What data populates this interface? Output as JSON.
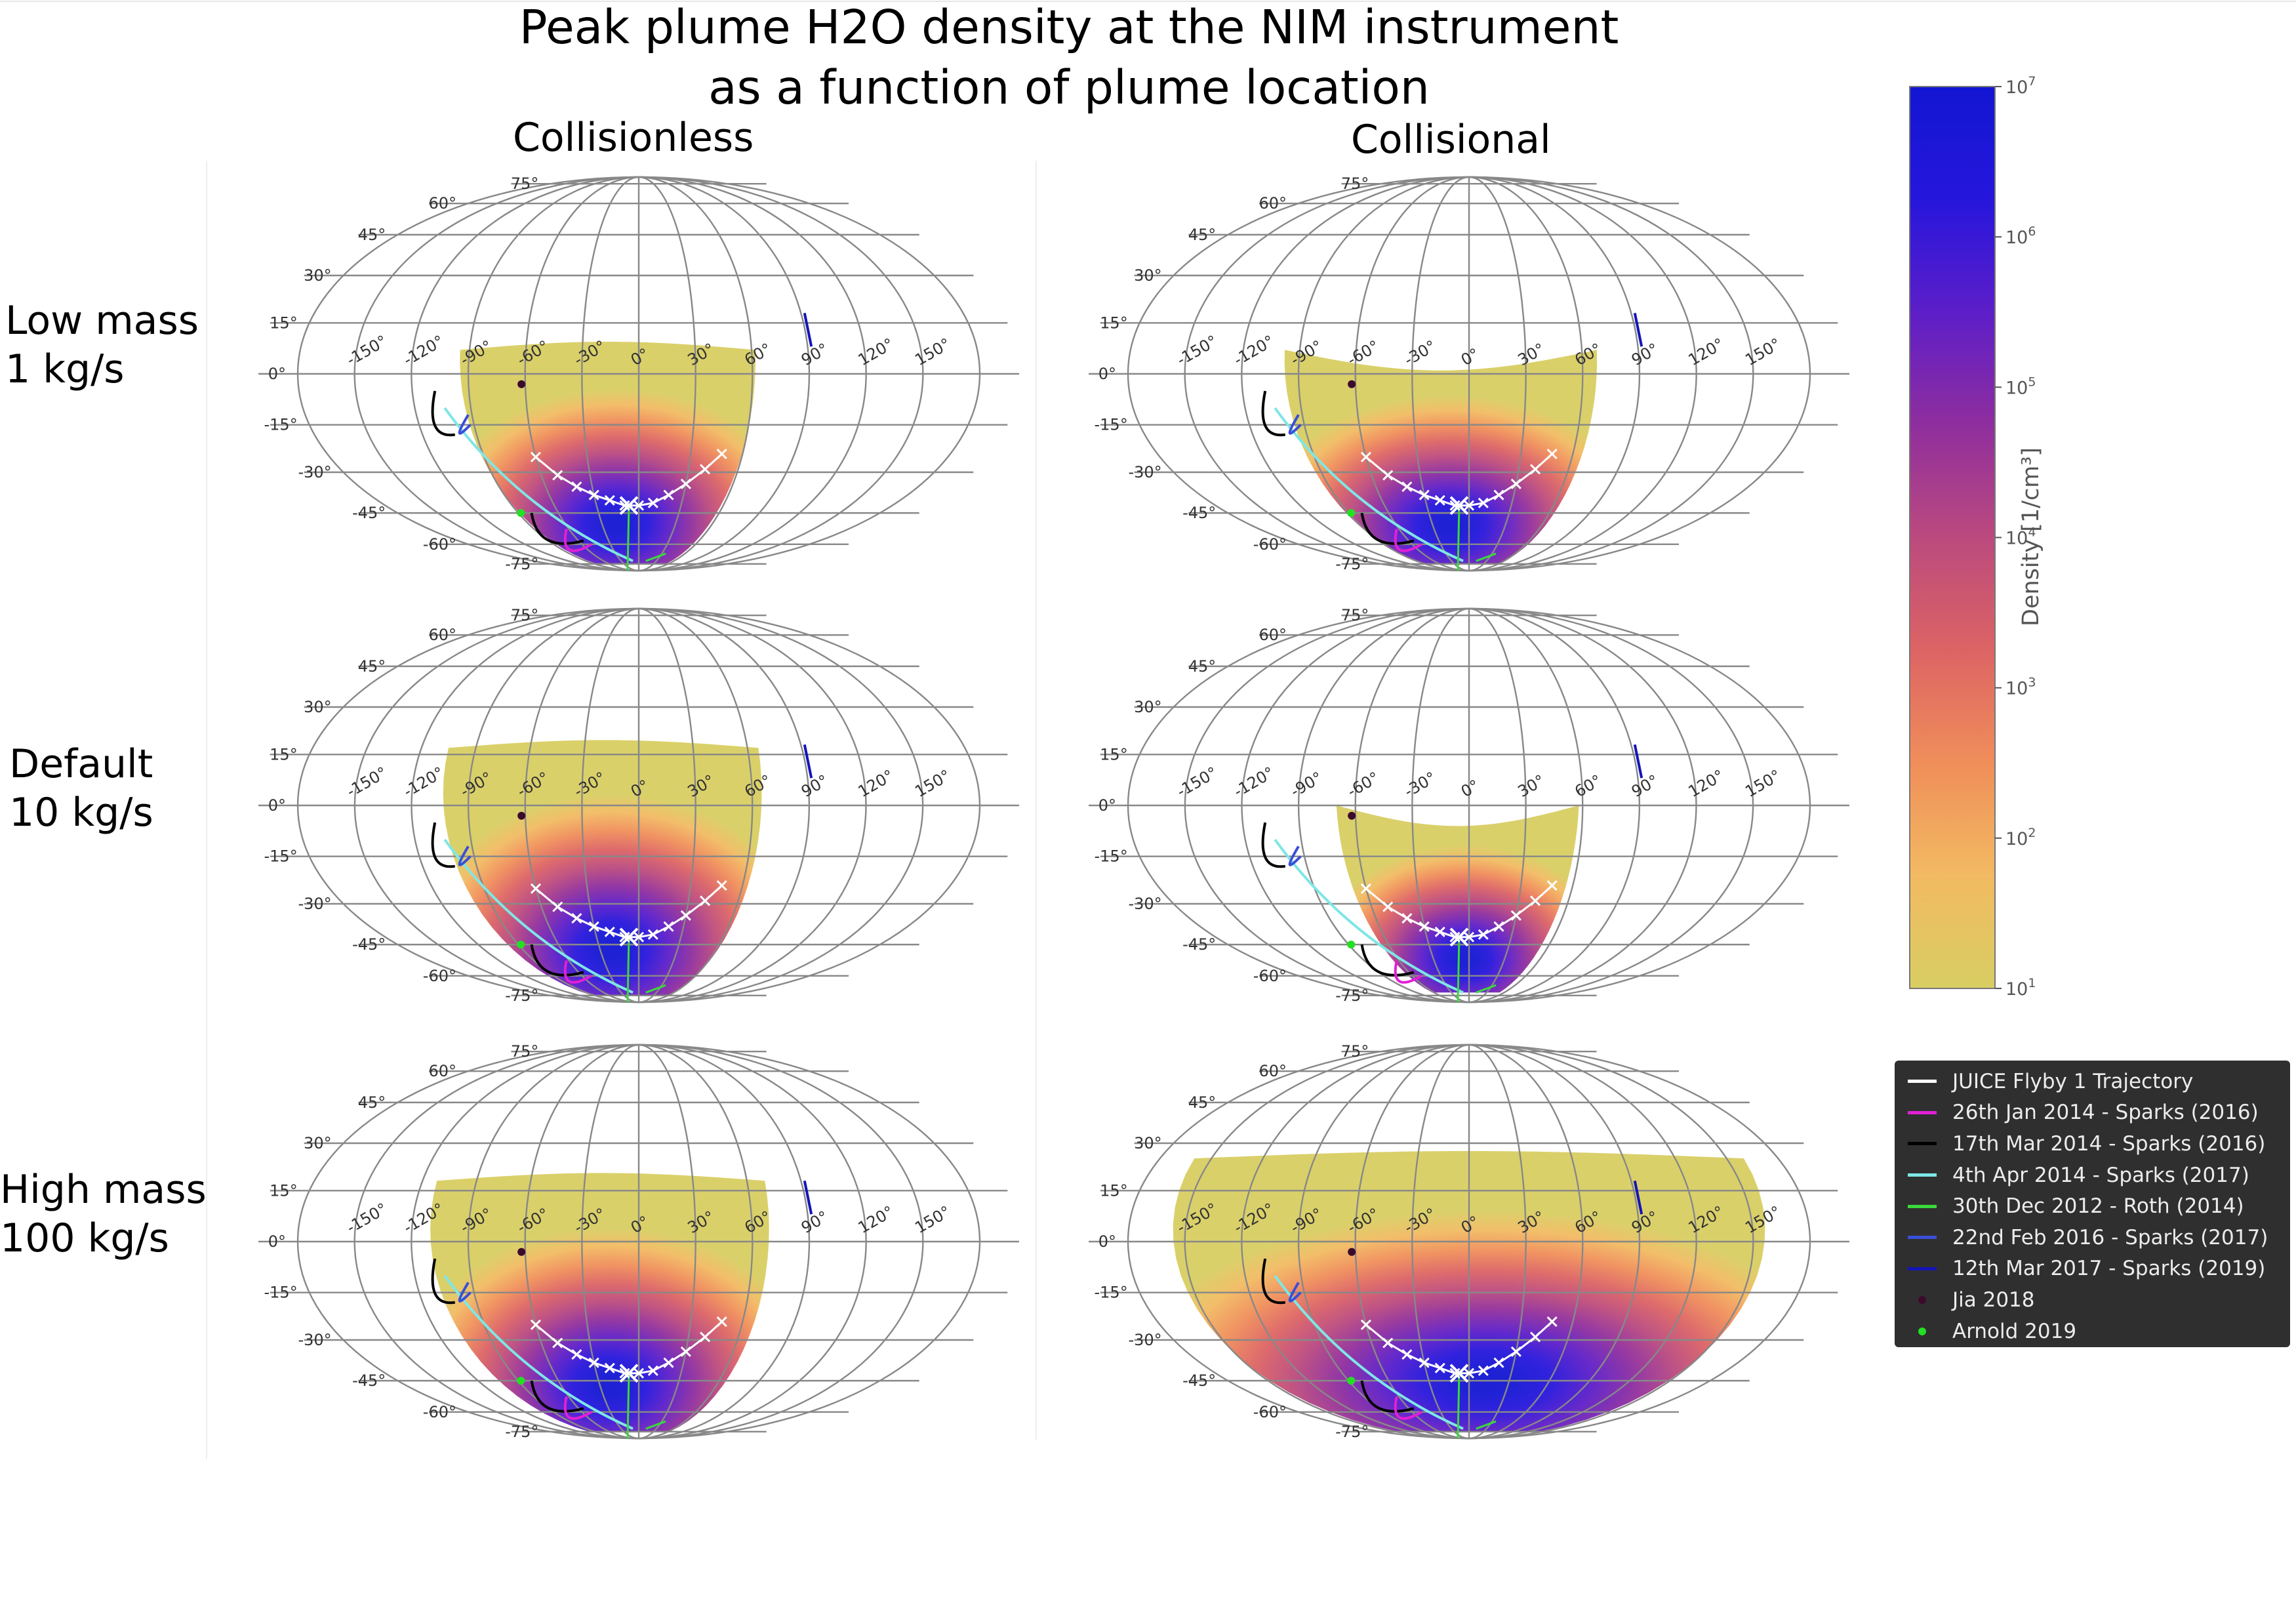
{
  "figure": {
    "title_line1": "Peak plume H2O density at the NIM instrument",
    "title_line2": "as a function of plume location"
  },
  "columns": [
    "Collisionless",
    "Collisional"
  ],
  "rows": [
    {
      "label": "Low mass\n1 kg/s"
    },
    {
      "label": "Default\n10 kg/s"
    },
    {
      "label": "High mass\n100 kg/s"
    }
  ],
  "colors": {
    "trajectory": "#ffffff",
    "grid": "#888888",
    "colormap": [
      "#d8ce62",
      "#f2ba62",
      "#f08e5a",
      "#dc6464",
      "#bb4a7e",
      "#8f2e9e",
      "#5d1ec8",
      "#2616dc",
      "#1216d2"
    ]
  },
  "chart_data": {
    "type": "map",
    "projection": "aitoff",
    "longitude_ticks": [
      "-150°",
      "-120°",
      "-90°",
      "-60°",
      "-30°",
      "0°",
      "30°",
      "60°",
      "90°",
      "120°",
      "150°"
    ],
    "latitude_ticks": [
      "75°",
      "60°",
      "45°",
      "30°",
      "15°",
      "0°",
      "-15°",
      "-30°",
      "-45°",
      "-60°",
      "-75°"
    ],
    "colorbar": {
      "label": "Density",
      "unit": "1/cm³",
      "scale": "log",
      "range": [
        10,
        10000000
      ],
      "tick_labels": [
        {
          "base": "10",
          "exp": "1"
        },
        {
          "base": "10",
          "exp": "2"
        },
        {
          "base": "10",
          "exp": "3"
        },
        {
          "base": "10",
          "exp": "4"
        },
        {
          "base": "10",
          "exp": "5"
        },
        {
          "base": "10",
          "exp": "6"
        },
        {
          "base": "10",
          "exp": "7"
        }
      ]
    },
    "legend": [
      {
        "label": "JUICE Flyby 1 Trajectory",
        "kind": "line",
        "color": "#ffffff"
      },
      {
        "label": "26th Jan 2014 - Sparks (2016)",
        "kind": "line",
        "color": "#e21fd6"
      },
      {
        "label": "17th Mar 2014 - Sparks (2016)",
        "kind": "line",
        "color": "#000000"
      },
      {
        "label": "4th Apr 2014 - Sparks (2017)",
        "kind": "line",
        "color": "#7fe6e6"
      },
      {
        "label": "30th Dec 2012 - Roth (2014)",
        "kind": "line",
        "color": "#39d93b"
      },
      {
        "label": "22nd Feb 2016 - Sparks (2017)",
        "kind": "line",
        "color": "#3a4fd6"
      },
      {
        "label": "12th Mar 2017 - Sparks (2019)",
        "kind": "line",
        "color": "#1414b8"
      },
      {
        "label": "Jia 2018",
        "kind": "dot",
        "color": "#3c0a2a"
      },
      {
        "label": "Arnold 2019",
        "kind": "dot",
        "color": "#22e022"
      }
    ],
    "features": {
      "jia_2018": {
        "lon": -62,
        "lat": -3
      },
      "arnold_2019": {
        "lon": -88,
        "lat": -45
      },
      "sparks_2019_segment": {
        "lon": 92,
        "lat_range": [
          8,
          18
        ]
      },
      "roth_2014_start": {
        "lon": 12,
        "lat": -72
      },
      "roth_2014_end": {
        "lon": 35,
        "lat": -66
      }
    },
    "trajectory": [
      {
        "lon": -60,
        "lat": -25
      },
      {
        "lon": -50,
        "lat": -31
      },
      {
        "lon": -40,
        "lat": -35
      },
      {
        "lon": -30,
        "lat": -38
      },
      {
        "lon": -20,
        "lat": -40
      },
      {
        "lon": -10,
        "lat": -42
      },
      {
        "lon": 0,
        "lat": -42
      },
      {
        "lon": 10,
        "lat": -41
      },
      {
        "lon": 20,
        "lat": -38
      },
      {
        "lon": 30,
        "lat": -34
      },
      {
        "lon": 40,
        "lat": -29
      },
      {
        "lon": 48,
        "lat": -24
      }
    ],
    "closest_approach": {
      "lon": -7,
      "lat": -42
    },
    "panels": [
      {
        "row": 0,
        "column": 0,
        "plume_extent": {
          "lon_min": -95,
          "lon_max": 62,
          "lat_max": 7,
          "lat_min": -75
        }
      },
      {
        "row": 0,
        "column": 1,
        "plume_extent": {
          "lon_min": -98,
          "lon_max": 68,
          "lat_max": 7,
          "lat_min": -75
        }
      },
      {
        "row": 1,
        "column": 0,
        "plume_extent": {
          "lon_min": -105,
          "lon_max": 66,
          "lat_max": 17,
          "lat_min": -75
        }
      },
      {
        "row": 1,
        "column": 1,
        "plume_extent": {
          "lon_min": -70,
          "lon_max": 58,
          "lat_max": 0,
          "lat_min": -72
        }
      },
      {
        "row": 2,
        "column": 0,
        "plume_extent": {
          "lon_min": -112,
          "lon_max": 70,
          "lat_max": 18,
          "lat_min": -75
        }
      },
      {
        "row": 2,
        "column": 1,
        "plume_extent": {
          "lon_min": -160,
          "lon_max": 160,
          "lat_max": 25,
          "lat_min": -75
        }
      }
    ]
  }
}
